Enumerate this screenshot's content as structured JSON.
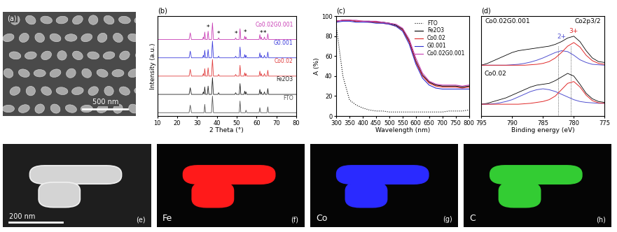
{
  "chart_data": [
    {
      "type": "line",
      "panel_label": "(b)",
      "xlabel": "2 Theta (°)",
      "ylabel": "Intensity (a.u.)",
      "xlim": [
        10,
        80
      ],
      "xticks": [
        10,
        20,
        30,
        40,
        50,
        60,
        70,
        80
      ],
      "ylim": [
        0,
        6
      ],
      "yticks": [],
      "tick_labels": "x",
      "x": [
        10,
        26.0,
        26.6,
        27.2,
        32.8,
        33.2,
        33.6,
        33.9,
        34.3,
        35.2,
        35.6,
        36.0,
        37.3,
        37.8,
        38.3,
        40.5,
        40.9,
        41.3,
        49.1,
        49.5,
        49.9,
        51.3,
        51.7,
        52.1,
        53.7,
        54.1,
        54.4,
        54.7,
        55.1,
        61.3,
        61.7,
        62.1,
        62.4,
        62.8,
        63.6,
        64.0,
        64.4,
        65.3,
        65.7,
        66.1,
        80
      ],
      "series": [
        {
          "name": "Co0.02G0.001",
          "color": "#c83cb4",
          "values": [
            4.6,
            4.6,
            5.0,
            4.6,
            4.6,
            4.75,
            4.6,
            5.05,
            4.6,
            4.6,
            5.1,
            4.6,
            4.6,
            5.6,
            4.6,
            4.6,
            4.7,
            4.6,
            4.6,
            4.7,
            4.6,
            4.6,
            5.25,
            4.6,
            4.6,
            4.8,
            4.6,
            4.75,
            4.6,
            4.6,
            4.9,
            4.6,
            4.75,
            4.6,
            4.6,
            4.75,
            4.6,
            4.6,
            4.95,
            4.6,
            4.6
          ]
        },
        {
          "name": "G0.001",
          "color": "#3c3cdc",
          "values": [
            3.5,
            3.5,
            3.9,
            3.5,
            3.5,
            3.65,
            3.5,
            3.95,
            3.5,
            3.5,
            4.0,
            3.5,
            3.5,
            4.5,
            3.5,
            3.5,
            3.6,
            3.5,
            3.5,
            3.6,
            3.5,
            3.5,
            4.15,
            3.5,
            3.5,
            3.7,
            3.5,
            3.65,
            3.5,
            3.5,
            3.8,
            3.5,
            3.65,
            3.5,
            3.5,
            3.65,
            3.5,
            3.5,
            3.85,
            3.5,
            3.5
          ]
        },
        {
          "name": "Co0.02",
          "color": "#e03c3c",
          "values": [
            2.4,
            2.4,
            2.8,
            2.4,
            2.4,
            2.55,
            2.4,
            2.85,
            2.4,
            2.4,
            2.9,
            2.4,
            2.4,
            3.4,
            2.4,
            2.4,
            2.5,
            2.4,
            2.4,
            2.5,
            2.4,
            2.4,
            3.05,
            2.4,
            2.4,
            2.6,
            2.4,
            2.55,
            2.4,
            2.4,
            2.7,
            2.4,
            2.55,
            2.4,
            2.4,
            2.55,
            2.4,
            2.4,
            2.75,
            2.4,
            2.4
          ]
        },
        {
          "name": "Fe2O3",
          "color": "#222222",
          "values": [
            1.3,
            1.3,
            1.7,
            1.3,
            1.3,
            1.45,
            1.3,
            1.75,
            1.3,
            1.3,
            1.8,
            1.3,
            1.3,
            2.3,
            1.3,
            1.3,
            1.4,
            1.3,
            1.3,
            1.4,
            1.3,
            1.3,
            1.95,
            1.3,
            1.3,
            1.5,
            1.3,
            1.45,
            1.3,
            1.3,
            1.6,
            1.3,
            1.45,
            1.3,
            1.3,
            1.45,
            1.3,
            1.3,
            1.65,
            1.3,
            1.3
          ]
        },
        {
          "name": "FTO",
          "color": "#555555",
          "values": [
            0.2,
            0.2,
            0.65,
            0.2,
            0.2,
            0.2,
            0.2,
            0.7,
            0.2,
            0.2,
            0.2,
            0.2,
            0.2,
            1.2,
            0.2,
            0.2,
            0.2,
            0.2,
            0.2,
            0.2,
            0.2,
            0.2,
            0.9,
            0.2,
            0.2,
            0.2,
            0.2,
            0.35,
            0.2,
            0.2,
            0.5,
            0.2,
            0.2,
            0.2,
            0.2,
            0.2,
            0.2,
            0.2,
            0.55,
            0.2,
            0.2
          ]
        }
      ],
      "peak_marks": {
        "label": "*",
        "x": [
          35.6,
          40.9,
          49.5,
          54.1,
          62.4,
          64.0
        ],
        "y": [
          5.1,
          4.7,
          4.7,
          4.8,
          4.75,
          4.75
        ]
      }
    },
    {
      "type": "line",
      "panel_label": "(c)",
      "xlabel": "Wavelength (nm)",
      "ylabel": "A (%)",
      "xlim": [
        300,
        800
      ],
      "xticks": [
        300,
        350,
        400,
        450,
        500,
        550,
        600,
        650,
        700,
        750,
        800
      ],
      "ylim": [
        0,
        100
      ],
      "yticks": [
        0,
        20,
        40,
        60,
        80,
        100
      ],
      "legend": "upper right",
      "x": [
        300,
        325,
        350,
        375,
        400,
        425,
        450,
        475,
        500,
        525,
        550,
        575,
        600,
        625,
        650,
        675,
        700,
        725,
        750,
        775,
        800
      ],
      "series": [
        {
          "name": "FTO",
          "color": "#000000",
          "line_style": "dotted",
          "values": [
            90,
            40,
            16,
            11,
            8,
            6,
            5,
            5,
            4,
            4,
            4,
            4,
            4,
            4,
            4,
            4,
            4,
            5,
            5,
            5,
            6
          ]
        },
        {
          "name": "Fe2O3",
          "color": "#000000",
          "line_style": "solid",
          "values": [
            95,
            96,
            96,
            95,
            95,
            95,
            94,
            94,
            93,
            91,
            87,
            75,
            55,
            41,
            34,
            31,
            30,
            30,
            30,
            29,
            30
          ]
        },
        {
          "name": "Co0.02",
          "color": "#e02828",
          "line_style": "solid",
          "values": [
            95,
            96,
            96,
            95,
            95,
            94,
            94,
            93,
            92,
            90,
            86,
            74,
            54,
            40,
            33,
            30,
            29,
            29,
            29,
            28,
            29
          ]
        },
        {
          "name": "G0.001",
          "color": "#3030d0",
          "line_style": "solid",
          "values": [
            94,
            95,
            95,
            94,
            94,
            94,
            93,
            93,
            92,
            90,
            85,
            72,
            52,
            38,
            31,
            28,
            27,
            27,
            27,
            27,
            27
          ]
        },
        {
          "name": "Co0.02G0.001",
          "color": "#c83cb4",
          "line_style": "solid",
          "values": [
            95,
            96,
            96,
            96,
            95,
            95,
            95,
            94,
            93,
            92,
            88,
            77,
            58,
            43,
            35,
            32,
            31,
            31,
            31,
            30,
            31
          ]
        }
      ]
    },
    {
      "type": "line",
      "panel_label": "(d)",
      "xlabel": "Binding energy (eV)",
      "xlim": [
        795,
        775
      ],
      "xticks": [
        795,
        790,
        785,
        780,
        775
      ],
      "ylim": [
        0,
        11
      ],
      "yticks": [],
      "tick_labels": "x",
      "annotations": [
        {
          "text": "Co2p3/2"
        }
      ],
      "reference_lines": [
        782.5,
        780.5
      ],
      "x": [
        795,
        794,
        793,
        792,
        791,
        790,
        789,
        788,
        787,
        786,
        785,
        784,
        783,
        782,
        781,
        780,
        779,
        778,
        777,
        776,
        775
      ],
      "series": [
        {
          "name": "Co0.02G0.001",
          "color": "#000000",
          "values": [
            5.6,
            5.8,
            6.1,
            6.4,
            6.7,
            7.0,
            7.2,
            7.3,
            7.4,
            7.5,
            7.6,
            7.7,
            7.9,
            8.2,
            8.6,
            8.8,
            8.2,
            7.2,
            6.4,
            6.0,
            5.9
          ],
          "fits": [
            {
              "label": "2+",
              "color": "#5050d0",
              "values": [
                5.6,
                5.6,
                5.6,
                5.6,
                5.6,
                5.65,
                5.7,
                5.8,
                5.95,
                6.15,
                6.4,
                6.7,
                7.0,
                7.2,
                7.1,
                6.7,
                6.2,
                5.9,
                5.7,
                5.65,
                5.6
              ]
            },
            {
              "label": "3+",
              "color": "#e02828",
              "values": [
                5.6,
                5.6,
                5.6,
                5.6,
                5.6,
                5.6,
                5.6,
                5.6,
                5.65,
                5.7,
                5.8,
                6.0,
                6.4,
                7.0,
                7.7,
                8.1,
                7.6,
                6.7,
                6.1,
                5.8,
                5.7
              ]
            }
          ]
        },
        {
          "name": "Co0.02",
          "color": "#000000",
          "values": [
            1.3,
            1.4,
            1.6,
            1.8,
            2.0,
            2.3,
            2.6,
            2.9,
            3.2,
            3.4,
            3.5,
            3.6,
            3.9,
            4.3,
            4.7,
            4.4,
            3.5,
            2.5,
            1.9,
            1.6,
            1.5
          ],
          "fits": [
            {
              "color": "#5050d0",
              "values": [
                1.3,
                1.3,
                1.35,
                1.45,
                1.6,
                1.8,
                2.1,
                2.4,
                2.7,
                2.9,
                3.0,
                2.9,
                2.7,
                2.4,
                2.1,
                1.8,
                1.6,
                1.5,
                1.45,
                1.4,
                1.4
              ]
            },
            {
              "color": "#e02828",
              "values": [
                1.3,
                1.3,
                1.3,
                1.3,
                1.3,
                1.3,
                1.3,
                1.35,
                1.4,
                1.5,
                1.6,
                1.8,
                2.2,
                2.9,
                3.6,
                3.8,
                3.2,
                2.3,
                1.7,
                1.45,
                1.4
              ]
            }
          ]
        }
      ]
    }
  ],
  "images": [
    {
      "type": "sem",
      "panel_label": "(a)",
      "scale_bar": "500 nm",
      "color": "#a8a8a8"
    },
    {
      "type": "tem",
      "panel_label": "(e)",
      "scale_bar": "200 nm",
      "color": "#d4d4d4"
    },
    {
      "type": "map",
      "panel_label": "(f)",
      "element": "Fe",
      "color": "#ff1a1a"
    },
    {
      "type": "map",
      "panel_label": "(g)",
      "element": "Co",
      "color": "#2a2aff"
    },
    {
      "type": "map",
      "panel_label": "(h)",
      "element": "C",
      "color": "#33cc33"
    }
  ]
}
